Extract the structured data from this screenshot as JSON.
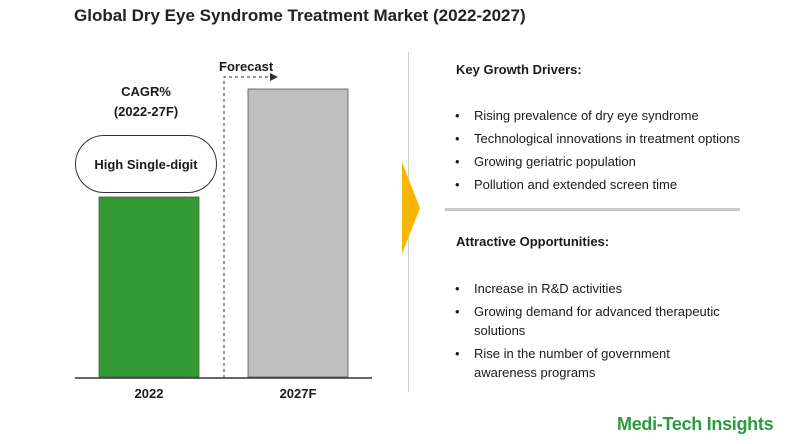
{
  "chart_data": {
    "type": "bar",
    "title": "Global Dry Eye Syndrome Treatment Market (2022-2027)",
    "categories": [
      "2022",
      "2027F"
    ],
    "values": [
      0.6,
      0.96
    ],
    "colors": [
      "#339933",
      "#bfbfbf"
    ],
    "forecast_label": "Forecast",
    "cagr_title": "CAGR%\n(2022-27F)",
    "cagr_value": "High Single-digit"
  },
  "drivers": {
    "heading": "Key Growth Drivers:",
    "items": [
      "Rising prevalence of dry eye syndrome",
      "Technological innovations in treatment options",
      "Growing geriatric population",
      "Pollution and extended screen time"
    ]
  },
  "opportunities": {
    "heading": "Attractive Opportunities:",
    "items": [
      "Increase in R&D activities",
      "Growing demand for advanced therapeutic solutions",
      "Rise in the number of government awareness programs"
    ]
  },
  "brand": "Medi-Tech Insights",
  "accent_color": "#f5b500"
}
